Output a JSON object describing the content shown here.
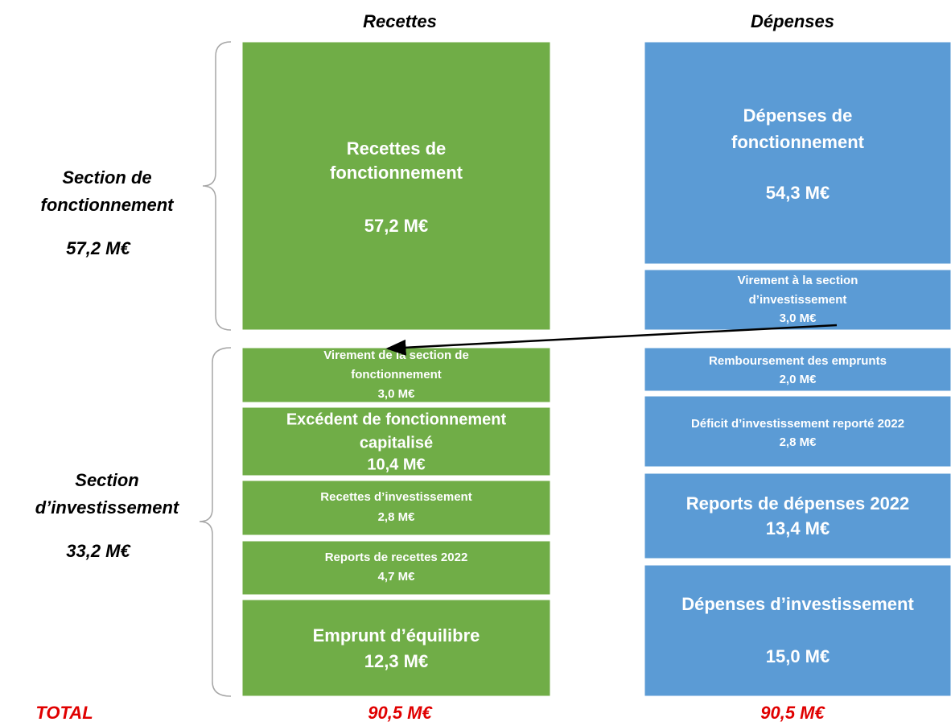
{
  "header": {
    "recettes": "Recettes",
    "depenses": "Dépenses"
  },
  "sections": [
    {
      "title_lines": [
        "Section de",
        "fonctionnement"
      ],
      "amount": "57,2 M€"
    },
    {
      "title_lines": [
        "Section",
        "d’investissement"
      ],
      "amount": "33,2 M€"
    }
  ],
  "recettes": [
    {
      "lines": [
        "Recettes de",
        "fonctionnement"
      ],
      "amount": "57,2 M€"
    },
    {
      "lines": [
        "Virement de la section de",
        "fonctionnement"
      ],
      "amount": "3,0 M€"
    },
    {
      "lines": [
        "Excédent de fonctionnement",
        "capitalisé"
      ],
      "amount": "10,4 M€"
    },
    {
      "lines": [
        "Recettes d’investissement"
      ],
      "amount": "2,8 M€"
    },
    {
      "lines": [
        "Reports de recettes 2022"
      ],
      "amount": "4,7 M€"
    },
    {
      "lines": [
        "Emprunt d’équilibre"
      ],
      "amount": "12,3 M€"
    }
  ],
  "depenses": [
    {
      "lines": [
        "Dépenses de",
        "fonctionnement"
      ],
      "amount": "54,3 M€"
    },
    {
      "lines": [
        "Virement à la section",
        "d’investissement"
      ],
      "amount": "3,0 M€"
    },
    {
      "lines": [
        "Remboursement des emprunts"
      ],
      "amount": "2,0 M€"
    },
    {
      "lines": [
        "Déficit d’investissement reporté 2022"
      ],
      "amount": "2,8 M€"
    },
    {
      "lines": [
        "Reports de dépenses 2022"
      ],
      "amount": "13,4 M€"
    },
    {
      "lines": [
        "Dépenses d’investissement"
      ],
      "amount": "15,0 M€"
    }
  ],
  "total": {
    "label": "TOTAL",
    "recettes": "90,5 M€",
    "depenses": "90,5 M€"
  }
}
